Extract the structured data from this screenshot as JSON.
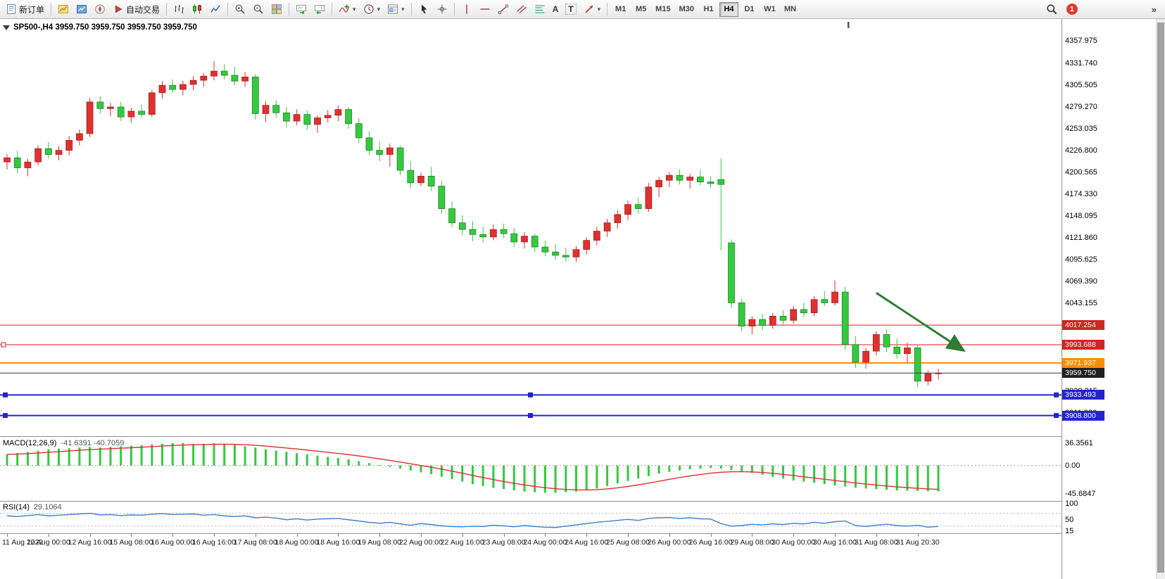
{
  "toolbar": {
    "items": [
      {
        "type": "button",
        "name": "new-order-button",
        "icon": "doc",
        "label": "新订单"
      },
      {
        "type": "sep"
      },
      {
        "type": "icon",
        "name": "new-chart-button",
        "icon": "newchart"
      },
      {
        "type": "icon",
        "name": "market-watch-button",
        "icon": "market"
      },
      {
        "type": "icon",
        "name": "navigator-button",
        "icon": "navigator"
      },
      {
        "type": "button",
        "name": "autotrading-button",
        "icon": "play",
        "label": "自动交易"
      },
      {
        "type": "sep"
      },
      {
        "type": "icon",
        "name": "bar-chart-button",
        "icon": "bars"
      },
      {
        "type": "icon",
        "name": "candlestick-chart-button",
        "icon": "candles"
      },
      {
        "type": "icon",
        "name": "line-chart-button",
        "icon": "linechart"
      },
      {
        "type": "sep"
      },
      {
        "type": "icon",
        "name": "zoom-in-button",
        "icon": "zoomin"
      },
      {
        "type": "icon",
        "name": "zoom-out-button",
        "icon": "zoomout"
      },
      {
        "type": "icon",
        "name": "tile-windows-button",
        "icon": "tile"
      },
      {
        "type": "sep"
      },
      {
        "type": "icon",
        "name": "auto-scroll-button",
        "icon": "autoscroll"
      },
      {
        "type": "icon",
        "name": "chart-shift-button",
        "icon": "shift"
      },
      {
        "type": "sep"
      },
      {
        "type": "icon",
        "name": "indicators-button",
        "icon": "indicators",
        "caret": true
      },
      {
        "type": "icon",
        "name": "periods-button",
        "icon": "clock",
        "caret": true
      },
      {
        "type": "icon",
        "name": "templates-button",
        "icon": "template",
        "caret": true
      },
      {
        "type": "sep"
      },
      {
        "type": "icon",
        "name": "cursor-button",
        "icon": "cursor"
      },
      {
        "type": "icon",
        "name": "crosshair-button",
        "icon": "crosshair"
      },
      {
        "type": "sep"
      },
      {
        "type": "icon",
        "name": "vertical-line-button",
        "icon": "vline"
      },
      {
        "type": "icon",
        "name": "horizontal-line-button",
        "icon": "hline"
      },
      {
        "type": "icon",
        "name": "trendline-button",
        "icon": "trend"
      },
      {
        "type": "icon",
        "name": "equidistant-channel-button",
        "icon": "channel"
      },
      {
        "type": "icon",
        "name": "fibonacci-button",
        "icon": "fibo"
      },
      {
        "type": "glyph",
        "name": "text-tool-button",
        "glyph": "A"
      },
      {
        "type": "glyph",
        "name": "label-tool-button",
        "glyph": "T",
        "boxed": true
      },
      {
        "type": "icon",
        "name": "arrows-tool-button",
        "icon": "arrowtool",
        "caret": true
      },
      {
        "type": "sep"
      }
    ],
    "timeframes": [
      "M1",
      "M5",
      "M15",
      "M30",
      "H1",
      "H4",
      "D1",
      "W1",
      "MN"
    ],
    "active_timeframe": "H4",
    "notification_count": "1",
    "badge_color": "#e23b2e"
  },
  "chart_data": [
    {
      "type": "candlestick",
      "symbol": "SP500-",
      "timeframe": "H4",
      "title_line": "SP500-,H4 3959.750 3959.750 3959.750 3959.750",
      "ohlc_current": {
        "open": 3959.75,
        "high": 3959.75,
        "low": 3959.75,
        "close": 3959.75
      },
      "ylim": [
        3884,
        4382
      ],
      "colors": {
        "up": "#e03030",
        "up_border": "#9b1c1c",
        "down": "#35c940",
        "down_border": "#157a1f",
        "background": "#ffffff"
      },
      "y_ticks": [
        4357.975,
        4331.74,
        4305.505,
        4279.27,
        4253.035,
        4226.8,
        4200.565,
        4174.33,
        4148.095,
        4121.86,
        4095.625,
        4069.39,
        4043.155,
        4016.92,
        3990.685,
        3964.45,
        3938.215,
        3911.98
      ],
      "price_lines": [
        {
          "price": 4017.254,
          "color": "#e01b1b",
          "width": 1,
          "badge": "#d32424"
        },
        {
          "price": 3993.688,
          "color": "#e01b1b",
          "width": 1,
          "badge": "#d32424",
          "left_handle": true
        },
        {
          "price": 3971.937,
          "color": "#ff8c00",
          "width": 2,
          "badge": "#ff8c00"
        },
        {
          "price": 3959.75,
          "color": "#3a3a3a",
          "width": 1,
          "badge": "#1f1f1f",
          "current": true
        },
        {
          "price": 3933.493,
          "color": "#2424cc",
          "width": 2,
          "badge": "#2424cc",
          "handles": true
        },
        {
          "price": 3908.8,
          "color": "#2424cc",
          "width": 2,
          "badge": "#2424cc",
          "handles": true
        }
      ],
      "x_labels": [
        "11 Aug 2022",
        "12 Aug 00:00",
        "12 Aug 16:00",
        "15 Aug 08:00",
        "16 Aug 00:00",
        "16 Aug 16:00",
        "17 Aug 08:00",
        "18 Aug 00:00",
        "18 Aug 16:00",
        "19 Aug 08:00",
        "22 Aug 00:00",
        "22 Aug 16:00",
        "23 Aug 08:00",
        "24 Aug 00:00",
        "24 Aug 16:00",
        "25 Aug 08:00",
        "26 Aug 00:00",
        "26 Aug 16:00",
        "29 Aug 08:00",
        "30 Aug 00:00",
        "30 Aug 16:00",
        "31 Aug 08:00",
        "31 Aug 20:30"
      ],
      "x_label_interval_candles": 4,
      "candles": [
        [
          4213,
          4222,
          4204,
          4218
        ],
        [
          4218,
          4226,
          4199,
          4206
        ],
        [
          4206,
          4217,
          4196,
          4213
        ],
        [
          4213,
          4233,
          4209,
          4229
        ],
        [
          4229,
          4237,
          4217,
          4222
        ],
        [
          4222,
          4232,
          4215,
          4227
        ],
        [
          4227,
          4244,
          4221,
          4239
        ],
        [
          4239,
          4252,
          4233,
          4247
        ],
        [
          4247,
          4290,
          4243,
          4285
        ],
        [
          4285,
          4292,
          4271,
          4277
        ],
        [
          4277,
          4284,
          4268,
          4279
        ],
        [
          4279,
          4285,
          4262,
          4267
        ],
        [
          4267,
          4278,
          4260,
          4274
        ],
        [
          4274,
          4282,
          4266,
          4270
        ],
        [
          4270,
          4300,
          4267,
          4296
        ],
        [
          4296,
          4310,
          4289,
          4305
        ],
        [
          4305,
          4312,
          4296,
          4300
        ],
        [
          4300,
          4310,
          4293,
          4306
        ],
        [
          4306,
          4316,
          4299,
          4311
        ],
        [
          4311,
          4320,
          4303,
          4316
        ],
        [
          4316,
          4334,
          4311,
          4322
        ],
        [
          4322,
          4330,
          4312,
          4317
        ],
        [
          4317,
          4327,
          4305,
          4310
        ],
        [
          4310,
          4321,
          4303,
          4315
        ],
        [
          4315,
          4318,
          4264,
          4271
        ],
        [
          4271,
          4286,
          4261,
          4281
        ],
        [
          4281,
          4287,
          4266,
          4272
        ],
        [
          4272,
          4279,
          4255,
          4262
        ],
        [
          4262,
          4276,
          4257,
          4270
        ],
        [
          4270,
          4275,
          4252,
          4258
        ],
        [
          4258,
          4269,
          4248,
          4266
        ],
        [
          4266,
          4275,
          4260,
          4269
        ],
        [
          4269,
          4281,
          4262,
          4276
        ],
        [
          4276,
          4279,
          4253,
          4259
        ],
        [
          4259,
          4266,
          4236,
          4242
        ],
        [
          4242,
          4250,
          4221,
          4227
        ],
        [
          4227,
          4238,
          4214,
          4222
        ],
        [
          4222,
          4235,
          4207,
          4230
        ],
        [
          4230,
          4233,
          4197,
          4203
        ],
        [
          4203,
          4214,
          4182,
          4188
        ],
        [
          4188,
          4200,
          4184,
          4196
        ],
        [
          4196,
          4207,
          4178,
          4184
        ],
        [
          4184,
          4190,
          4151,
          4157
        ],
        [
          4157,
          4166,
          4135,
          4140
        ],
        [
          4140,
          4149,
          4125,
          4132
        ],
        [
          4132,
          4142,
          4118,
          4126
        ],
        [
          4126,
          4135,
          4116,
          4123
        ],
        [
          4123,
          4138,
          4119,
          4132
        ],
        [
          4132,
          4139,
          4122,
          4127
        ],
        [
          4127,
          4134,
          4111,
          4117
        ],
        [
          4117,
          4129,
          4109,
          4124
        ],
        [
          4124,
          4127,
          4105,
          4111
        ],
        [
          4111,
          4119,
          4100,
          4105
        ],
        [
          4105,
          4114,
          4096,
          4101
        ],
        [
          4101,
          4110,
          4094,
          4099
        ],
        [
          4099,
          4112,
          4093,
          4108
        ],
        [
          4108,
          4123,
          4102,
          4119
        ],
        [
          4119,
          4135,
          4113,
          4130
        ],
        [
          4130,
          4145,
          4123,
          4140
        ],
        [
          4140,
          4155,
          4133,
          4150
        ],
        [
          4150,
          4167,
          4143,
          4162
        ],
        [
          4162,
          4170,
          4151,
          4157
        ],
        [
          4157,
          4188,
          4153,
          4183
        ],
        [
          4183,
          4195,
          4171,
          4191
        ],
        [
          4191,
          4201,
          4183,
          4197
        ],
        [
          4197,
          4204,
          4186,
          4191
        ],
        [
          4191,
          4199,
          4181,
          4195
        ],
        [
          4195,
          4203,
          4185,
          4189
        ],
        [
          4189,
          4196,
          4182,
          4187
        ],
        [
          4192,
          4217,
          4107,
          4186
        ],
        [
          4116,
          4120,
          4038,
          4044
        ],
        [
          4044,
          4049,
          4010,
          4016
        ],
        [
          4016,
          4028,
          4006,
          4024
        ],
        [
          4024,
          4031,
          4011,
          4017
        ],
        [
          4017,
          4032,
          4013,
          4028
        ],
        [
          4028,
          4035,
          4018,
          4023
        ],
        [
          4023,
          4040,
          4019,
          4036
        ],
        [
          4036,
          4044,
          4027,
          4032
        ],
        [
          4032,
          4052,
          4028,
          4048
        ],
        [
          4048,
          4058,
          4040,
          4044
        ],
        [
          4044,
          4071,
          4041,
          4057
        ],
        [
          4057,
          4063,
          3988,
          3994
        ],
        [
          3994,
          4004,
          3966,
          3973
        ],
        [
          3973,
          3990,
          3965,
          3986
        ],
        [
          3986,
          4010,
          3981,
          4006
        ],
        [
          4006,
          4012,
          3985,
          3991
        ],
        [
          3991,
          4001,
          3977,
          3983
        ],
        [
          3983,
          3996,
          3973,
          3990
        ],
        [
          3990,
          3994,
          3943,
          3950
        ],
        [
          3950,
          3963,
          3945,
          3959
        ],
        [
          3959,
          3965,
          3952,
          3959.75
        ]
      ],
      "annotation_arrow": {
        "from": {
          "candle": 84,
          "price": 4056
        },
        "to": {
          "candle": 92.3,
          "price": 3988
        },
        "color": "#2f7d32"
      }
    },
    {
      "type": "macd",
      "label": "MACD(12,26,9)",
      "values_label": "-41.6391 -40.7059",
      "current_macd": -41.6391,
      "current_signal": -40.7059,
      "signal_period": 9,
      "ylim": [
        -57,
        45
      ],
      "colors": {
        "histogram": "#35c940",
        "signal": "#e03030"
      },
      "scale_labels": [
        {
          "v": 36.3561,
          "label": "36.3561"
        },
        {
          "v": 0,
          "label": "0.00"
        },
        {
          "v": -45.6847,
          "label": "-45.6847"
        }
      ],
      "histogram": [
        18,
        20,
        22,
        24,
        26,
        27,
        28,
        29,
        30,
        29,
        30,
        31,
        32,
        33,
        34,
        35,
        36,
        36,
        35,
        35,
        36,
        35,
        33,
        31,
        29,
        26,
        24,
        22,
        20,
        18,
        16,
        14,
        12,
        10,
        7,
        4,
        1,
        -2,
        -5,
        -8,
        -11,
        -14,
        -18,
        -22,
        -26,
        -30,
        -33,
        -36,
        -38,
        -40,
        -42,
        -43,
        -44,
        -44,
        -43,
        -42,
        -40,
        -37,
        -33,
        -29,
        -25,
        -21,
        -17,
        -13,
        -10,
        -8,
        -6,
        -5,
        -4,
        -5,
        -7,
        -9,
        -12,
        -15,
        -18,
        -21,
        -24,
        -26,
        -28,
        -30,
        -32,
        -34,
        -36,
        -37,
        -38,
        -39,
        -40,
        -40.5,
        -41,
        -41.3,
        -41.6391
      ]
    },
    {
      "type": "rsi",
      "label": "RSI(14)",
      "value_label": "29.1064",
      "current_value": 29.1064,
      "ylim": [
        8,
        104
      ],
      "levels": [
        70,
        30
      ],
      "colors": {
        "line": "#3f7fca"
      },
      "scale_labels": [
        {
          "v": 100,
          "label": "100"
        },
        {
          "v": 50,
          "label": "50"
        },
        {
          "v": 15,
          "label": "15"
        }
      ],
      "values": [
        62,
        60,
        63,
        66,
        62,
        64,
        66,
        68,
        70,
        65,
        66,
        63,
        65,
        64,
        67,
        69,
        66,
        67,
        68,
        64,
        66,
        62,
        60,
        62,
        56,
        58,
        55,
        50,
        53,
        49,
        52,
        53,
        54,
        50,
        46,
        42,
        39,
        42,
        37,
        33,
        38,
        35,
        31,
        29,
        28,
        30,
        29,
        33,
        31,
        28,
        32,
        29,
        27,
        26,
        30,
        34,
        38,
        42,
        45,
        48,
        51,
        48,
        54,
        56,
        57,
        54,
        56,
        53,
        52,
        38,
        30,
        32,
        36,
        34,
        37,
        35,
        39,
        37,
        42,
        39,
        44,
        46,
        32,
        29,
        33,
        36,
        32,
        30,
        33,
        27,
        29.1064
      ]
    }
  ]
}
